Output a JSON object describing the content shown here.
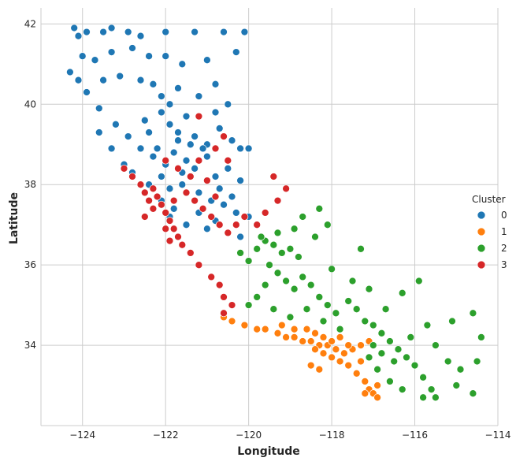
{
  "chart_data": {
    "type": "scatter",
    "title": "",
    "xlabel": "Longitude",
    "ylabel": "Latitude",
    "xlim": [
      -125,
      -114
    ],
    "ylim": [
      32.0,
      42.4
    ],
    "xticks": [
      -124,
      -122,
      -120,
      -118,
      -116,
      -114
    ],
    "yticks": [
      34,
      36,
      38,
      40,
      42
    ],
    "grid": true,
    "legend": {
      "title": "Cluster",
      "placement": "center-right"
    },
    "series": [
      {
        "name": "0",
        "color": "#1f77b4",
        "points": [
          [
            -124.2,
            41.9
          ],
          [
            -124.1,
            41.7
          ],
          [
            -123.9,
            41.8
          ],
          [
            -123.5,
            41.8
          ],
          [
            -123.3,
            41.9
          ],
          [
            -122.9,
            41.8
          ],
          [
            -122.6,
            41.7
          ],
          [
            -122.0,
            41.8
          ],
          [
            -121.3,
            41.8
          ],
          [
            -120.6,
            41.8
          ],
          [
            -120.1,
            41.8
          ],
          [
            -124.0,
            41.2
          ],
          [
            -123.7,
            41.1
          ],
          [
            -123.3,
            41.3
          ],
          [
            -122.8,
            41.4
          ],
          [
            -122.4,
            41.2
          ],
          [
            -122.0,
            41.2
          ],
          [
            -121.6,
            41.0
          ],
          [
            -121.0,
            41.1
          ],
          [
            -120.3,
            41.3
          ],
          [
            -124.3,
            40.8
          ],
          [
            -124.1,
            40.6
          ],
          [
            -123.9,
            40.3
          ],
          [
            -123.5,
            40.6
          ],
          [
            -123.1,
            40.7
          ],
          [
            -122.6,
            40.6
          ],
          [
            -122.3,
            40.5
          ],
          [
            -122.1,
            40.2
          ],
          [
            -121.7,
            40.4
          ],
          [
            -121.2,
            40.2
          ],
          [
            -120.8,
            40.5
          ],
          [
            -120.5,
            40.0
          ],
          [
            -123.6,
            39.9
          ],
          [
            -123.2,
            39.5
          ],
          [
            -122.9,
            39.2
          ],
          [
            -122.5,
            39.6
          ],
          [
            -122.1,
            39.8
          ],
          [
            -121.9,
            39.5
          ],
          [
            -121.7,
            39.1
          ],
          [
            -121.5,
            39.7
          ],
          [
            -121.3,
            39.2
          ],
          [
            -121.0,
            39.0
          ],
          [
            -120.7,
            39.4
          ],
          [
            -120.4,
            39.1
          ],
          [
            -120.2,
            38.9
          ],
          [
            -120.0,
            38.9
          ],
          [
            -122.6,
            38.9
          ],
          [
            -122.3,
            38.7
          ],
          [
            -122.0,
            38.5
          ],
          [
            -121.8,
            38.8
          ],
          [
            -121.5,
            38.6
          ],
          [
            -121.3,
            38.4
          ],
          [
            -121.0,
            38.7
          ],
          [
            -120.8,
            38.2
          ],
          [
            -120.5,
            38.4
          ],
          [
            -120.2,
            38.1
          ],
          [
            -123.0,
            38.5
          ],
          [
            -122.8,
            38.3
          ],
          [
            -122.4,
            38.0
          ],
          [
            -122.1,
            38.2
          ],
          [
            -121.9,
            37.9
          ],
          [
            -121.6,
            38.0
          ],
          [
            -121.2,
            37.8
          ],
          [
            -120.9,
            37.6
          ],
          [
            -120.6,
            37.5
          ],
          [
            -120.3,
            37.3
          ],
          [
            -120.0,
            37.2
          ],
          [
            -120.5,
            36.8
          ],
          [
            -120.2,
            36.7
          ],
          [
            -121.0,
            36.9
          ],
          [
            -121.8,
            37.4
          ],
          [
            -122.1,
            37.6
          ],
          [
            -121.9,
            37.2
          ],
          [
            -121.5,
            37.0
          ],
          [
            -121.7,
            39.3
          ],
          [
            -121.4,
            39.0
          ],
          [
            -121.1,
            38.9
          ],
          [
            -120.8,
            39.8
          ],
          [
            -121.9,
            40.0
          ],
          [
            -122.4,
            39.3
          ],
          [
            -123.3,
            38.9
          ],
          [
            -123.6,
            39.3
          ],
          [
            -122.2,
            38.9
          ],
          [
            -121.6,
            38.3
          ],
          [
            -120.7,
            37.9
          ],
          [
            -120.4,
            37.7
          ],
          [
            -121.2,
            37.3
          ],
          [
            -120.8,
            37.1
          ]
        ]
      },
      {
        "name": "1",
        "color": "#ff7f0e",
        "points": [
          [
            -120.6,
            34.7
          ],
          [
            -120.4,
            34.6
          ],
          [
            -120.1,
            34.5
          ],
          [
            -119.8,
            34.4
          ],
          [
            -119.6,
            34.4
          ],
          [
            -119.3,
            34.3
          ],
          [
            -119.1,
            34.2
          ],
          [
            -118.9,
            34.2
          ],
          [
            -118.7,
            34.1
          ],
          [
            -118.5,
            34.1
          ],
          [
            -118.3,
            34.0
          ],
          [
            -118.1,
            34.0
          ],
          [
            -117.9,
            33.9
          ],
          [
            -117.7,
            33.8
          ],
          [
            -117.5,
            33.9
          ],
          [
            -117.3,
            34.0
          ],
          [
            -117.1,
            34.1
          ],
          [
            -118.4,
            33.9
          ],
          [
            -118.2,
            33.8
          ],
          [
            -118.0,
            33.7
          ],
          [
            -117.8,
            33.6
          ],
          [
            -117.6,
            33.5
          ],
          [
            -117.4,
            33.3
          ],
          [
            -117.2,
            33.1
          ],
          [
            -117.1,
            32.9
          ],
          [
            -117.0,
            32.8
          ],
          [
            -116.9,
            32.7
          ],
          [
            -117.2,
            32.8
          ],
          [
            -118.2,
            34.2
          ],
          [
            -118.4,
            34.3
          ],
          [
            -118.0,
            34.1
          ],
          [
            -117.8,
            34.2
          ],
          [
            -117.6,
            34.0
          ],
          [
            -118.6,
            34.4
          ],
          [
            -118.9,
            34.4
          ],
          [
            -119.2,
            34.5
          ],
          [
            -118.5,
            33.5
          ],
          [
            -118.3,
            33.4
          ],
          [
            -116.9,
            33.0
          ],
          [
            -117.3,
            33.6
          ]
        ]
      },
      {
        "name": "2",
        "color": "#2ca02c",
        "points": [
          [
            -120.2,
            36.3
          ],
          [
            -120.0,
            36.1
          ],
          [
            -119.8,
            36.4
          ],
          [
            -119.6,
            36.6
          ],
          [
            -119.4,
            36.5
          ],
          [
            -119.2,
            36.3
          ],
          [
            -119.0,
            36.4
          ],
          [
            -118.8,
            36.2
          ],
          [
            -119.5,
            36.0
          ],
          [
            -119.3,
            35.8
          ],
          [
            -119.1,
            35.6
          ],
          [
            -118.9,
            35.4
          ],
          [
            -119.6,
            35.5
          ],
          [
            -119.8,
            35.2
          ],
          [
            -120.0,
            35.0
          ],
          [
            -118.7,
            35.7
          ],
          [
            -118.5,
            35.5
          ],
          [
            -118.3,
            35.2
          ],
          [
            -118.1,
            35.0
          ],
          [
            -117.9,
            34.8
          ],
          [
            -117.6,
            35.1
          ],
          [
            -117.4,
            34.9
          ],
          [
            -117.2,
            34.6
          ],
          [
            -117.0,
            34.5
          ],
          [
            -116.8,
            34.3
          ],
          [
            -116.6,
            34.1
          ],
          [
            -116.4,
            33.9
          ],
          [
            -116.2,
            33.7
          ],
          [
            -116.0,
            33.5
          ],
          [
            -115.8,
            33.2
          ],
          [
            -115.6,
            32.9
          ],
          [
            -115.5,
            32.7
          ],
          [
            -115.8,
            32.7
          ],
          [
            -116.3,
            32.9
          ],
          [
            -116.6,
            33.1
          ],
          [
            -116.9,
            33.4
          ],
          [
            -117.1,
            33.7
          ],
          [
            -117.0,
            34.0
          ],
          [
            -116.8,
            33.8
          ],
          [
            -116.5,
            33.6
          ],
          [
            -116.1,
            34.2
          ],
          [
            -115.7,
            34.5
          ],
          [
            -115.5,
            34.0
          ],
          [
            -115.2,
            33.6
          ],
          [
            -114.9,
            33.4
          ],
          [
            -114.6,
            34.8
          ],
          [
            -114.5,
            33.6
          ],
          [
            -114.4,
            34.2
          ],
          [
            -115.1,
            34.6
          ],
          [
            -116.3,
            35.3
          ],
          [
            -117.1,
            35.4
          ],
          [
            -117.5,
            35.6
          ],
          [
            -118.0,
            35.9
          ],
          [
            -118.4,
            36.7
          ],
          [
            -118.7,
            37.2
          ],
          [
            -118.3,
            37.4
          ],
          [
            -118.1,
            37.0
          ],
          [
            -117.3,
            36.4
          ],
          [
            -115.9,
            35.6
          ],
          [
            -116.7,
            34.9
          ],
          [
            -114.6,
            32.8
          ],
          [
            -115.0,
            33.0
          ],
          [
            -118.9,
            36.9
          ],
          [
            -119.3,
            36.8
          ],
          [
            -119.7,
            36.7
          ],
          [
            -118.6,
            34.9
          ],
          [
            -119.0,
            34.7
          ],
          [
            -119.4,
            34.9
          ],
          [
            -118.2,
            34.6
          ],
          [
            -117.8,
            34.4
          ]
        ]
      },
      {
        "name": "3",
        "color": "#d62728",
        "points": [
          [
            -123.0,
            38.4
          ],
          [
            -122.8,
            38.2
          ],
          [
            -122.6,
            38.0
          ],
          [
            -122.5,
            37.8
          ],
          [
            -122.4,
            37.6
          ],
          [
            -122.3,
            37.4
          ],
          [
            -122.2,
            37.7
          ],
          [
            -122.1,
            37.5
          ],
          [
            -122.0,
            37.3
          ],
          [
            -121.9,
            37.1
          ],
          [
            -121.8,
            36.9
          ],
          [
            -121.7,
            36.7
          ],
          [
            -121.6,
            36.5
          ],
          [
            -121.9,
            36.6
          ],
          [
            -122.0,
            36.9
          ],
          [
            -121.8,
            37.6
          ],
          [
            -121.5,
            37.8
          ],
          [
            -121.3,
            37.6
          ],
          [
            -121.1,
            37.4
          ],
          [
            -120.9,
            37.2
          ],
          [
            -120.7,
            37.0
          ],
          [
            -120.5,
            36.8
          ],
          [
            -120.3,
            37.0
          ],
          [
            -120.1,
            37.2
          ],
          [
            -119.8,
            37.0
          ],
          [
            -119.6,
            37.3
          ],
          [
            -119.3,
            37.6
          ],
          [
            -119.1,
            37.9
          ],
          [
            -119.4,
            38.2
          ],
          [
            -121.4,
            36.3
          ],
          [
            -121.2,
            36.0
          ],
          [
            -120.9,
            35.7
          ],
          [
            -120.7,
            35.5
          ],
          [
            -120.6,
            35.2
          ],
          [
            -120.4,
            35.0
          ],
          [
            -120.6,
            34.8
          ],
          [
            -122.0,
            38.6
          ],
          [
            -121.7,
            38.4
          ],
          [
            -121.4,
            38.2
          ],
          [
            -121.2,
            38.6
          ],
          [
            -120.8,
            38.9
          ],
          [
            -120.5,
            38.6
          ],
          [
            -121.0,
            38.1
          ],
          [
            -120.8,
            37.7
          ],
          [
            -122.3,
            37.9
          ],
          [
            -121.2,
            39.7
          ],
          [
            -120.6,
            39.2
          ],
          [
            -122.5,
            37.2
          ]
        ]
      }
    ]
  }
}
